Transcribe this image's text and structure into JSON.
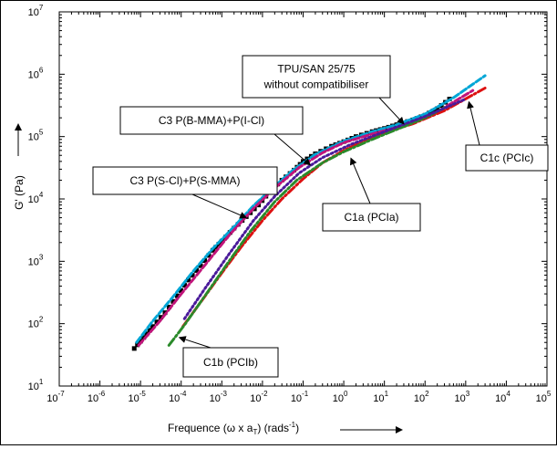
{
  "chart_data": {
    "type": "scatter",
    "xlabel": "Frequence",
    "xlabel_symbol": "(ω x a",
    "xlabel_sub": "T",
    "xlabel_units": ")  (rads",
    "xlabel_units_sup": "-1",
    "xlabel_end": ")",
    "ylabel": "G' (Pa)",
    "xscale": "log",
    "yscale": "log",
    "xlim": [
      1e-07,
      100000.0
    ],
    "ylim": [
      10,
      10000000.0
    ],
    "x_ticks": [
      {
        "base": "10",
        "exp": "-7",
        "value": 1e-07
      },
      {
        "base": "10",
        "exp": "-6",
        "value": 1e-06
      },
      {
        "base": "10",
        "exp": "-5",
        "value": 1e-05
      },
      {
        "base": "10",
        "exp": "-4",
        "value": 0.0001
      },
      {
        "base": "10",
        "exp": "-3",
        "value": 0.001
      },
      {
        "base": "10",
        "exp": "-2",
        "value": 0.01
      },
      {
        "base": "10",
        "exp": "-1",
        "value": 0.1
      },
      {
        "base": "10",
        "exp": "0",
        "value": 1
      },
      {
        "base": "10",
        "exp": "1",
        "value": 10
      },
      {
        "base": "10",
        "exp": "2",
        "value": 100
      },
      {
        "base": "10",
        "exp": "3",
        "value": 1000
      },
      {
        "base": "10",
        "exp": "4",
        "value": 10000
      },
      {
        "base": "10",
        "exp": "5",
        "value": 100000
      }
    ],
    "y_ticks": [
      {
        "base": "10",
        "exp": "1",
        "value": 10
      },
      {
        "base": "10",
        "exp": "2",
        "value": 100
      },
      {
        "base": "10",
        "exp": "3",
        "value": 1000
      },
      {
        "base": "10",
        "exp": "4",
        "value": 10000
      },
      {
        "base": "10",
        "exp": "5",
        "value": 100000
      },
      {
        "base": "10",
        "exp": "6",
        "value": 1000000
      },
      {
        "base": "10",
        "exp": "7",
        "value": 10000000
      }
    ],
    "series": [
      {
        "name": "TPU/SAN 25/75 without compatibiliser",
        "color": "#000000",
        "style": "square-markers",
        "x": [
          7e-06,
          1.2e-05,
          2e-05,
          4e-05,
          8e-05,
          0.00015,
          0.0003,
          0.0006,
          0.001,
          0.002,
          0.004,
          0.008,
          0.015,
          0.03,
          0.06,
          0.1,
          0.2,
          0.5,
          1,
          2,
          5,
          10,
          20,
          50,
          100,
          200,
          400
        ],
        "y": [
          40,
          60,
          90,
          150,
          280,
          500,
          850,
          1500,
          2100,
          3400,
          5200,
          8000,
          13000,
          20000,
          29000,
          40000,
          53000,
          70000,
          83000,
          100000,
          120000,
          135000,
          155000,
          185000,
          220000,
          280000,
          400000
        ]
      },
      {
        "name": "C3 P(S-Cl)+P(S-MMA)",
        "color": "#00a6d6",
        "style": "dash",
        "x": [
          8e-06,
          2e-05,
          6e-05,
          0.0002,
          0.0006,
          0.002,
          0.006,
          0.02,
          0.06,
          0.2,
          1,
          5,
          20,
          100,
          500,
          3000
        ],
        "y": [
          50,
          110,
          260,
          700,
          1600,
          3600,
          7800,
          16000,
          30000,
          52000,
          85000,
          120000,
          155000,
          230000,
          420000,
          950000
        ]
      },
      {
        "name": "C3 P(B-MMA)+P(I-Cl)",
        "color": "#c0147a",
        "style": "dash",
        "x": [
          9e-06,
          3e-05,
          0.0001,
          0.0004,
          0.0015,
          0.006,
          0.02,
          0.08,
          0.3,
          1,
          5,
          30,
          200,
          1500
        ],
        "y": [
          45,
          110,
          300,
          900,
          2600,
          7000,
          15000,
          32000,
          55000,
          80000,
          110000,
          150000,
          250000,
          550000
        ]
      },
      {
        "name": "C1a (PCIa)",
        "color": "#dd1111",
        "style": "dashdot",
        "x": [
          0.00011,
          0.0003,
          0.001,
          0.003,
          0.01,
          0.03,
          0.1,
          0.3,
          1,
          3,
          10,
          50,
          300,
          3000
        ],
        "y": [
          90,
          220,
          650,
          1700,
          4500,
          10000,
          21000,
          38000,
          60000,
          85000,
          115000,
          160000,
          260000,
          600000
        ]
      },
      {
        "name": "C1b (PCIb)",
        "color": "#2a8a2a",
        "style": "dashdot",
        "x": [
          5e-05,
          0.00012,
          0.0004,
          0.0015,
          0.005,
          0.02,
          0.07,
          0.3,
          1,
          5,
          20,
          100,
          300
        ],
        "y": [
          45,
          95,
          290,
          1000,
          3000,
          9000,
          20000,
          38000,
          57000,
          90000,
          130000,
          200000,
          290000
        ]
      },
      {
        "name": "C1c (PCIc)",
        "color": "#4a1a9a",
        "style": "dot",
        "x": [
          0.00012,
          0.0004,
          0.0015,
          0.006,
          0.02,
          0.08,
          0.3,
          1.5,
          10,
          100,
          1000
        ],
        "y": [
          120,
          380,
          1300,
          4500,
          11000,
          26000,
          46000,
          75000,
          120000,
          210000,
          400000
        ]
      }
    ],
    "annotations": [
      {
        "lines": [
          "TPU/SAN 25/75",
          "without compatibiliser"
        ],
        "target": [
          30,
          160000
        ]
      },
      {
        "lines": [
          "C3 P(B-MMA)+P(I-Cl)"
        ],
        "target": [
          0.15,
          35000
        ]
      },
      {
        "lines": [
          "C3 P(S-Cl)+P(S-MMA)"
        ],
        "target": [
          0.004,
          5000
        ]
      },
      {
        "lines": [
          "C1a (PCIa)"
        ],
        "target": [
          1.5,
          45000
        ]
      },
      {
        "lines": [
          "C1b (PCIb)"
        ],
        "target": [
          9e-05,
          60
        ]
      },
      {
        "lines": [
          "C1c (PCIc)"
        ],
        "target": [
          1200,
          360000
        ]
      }
    ],
    "grid": false,
    "legend": "none"
  }
}
